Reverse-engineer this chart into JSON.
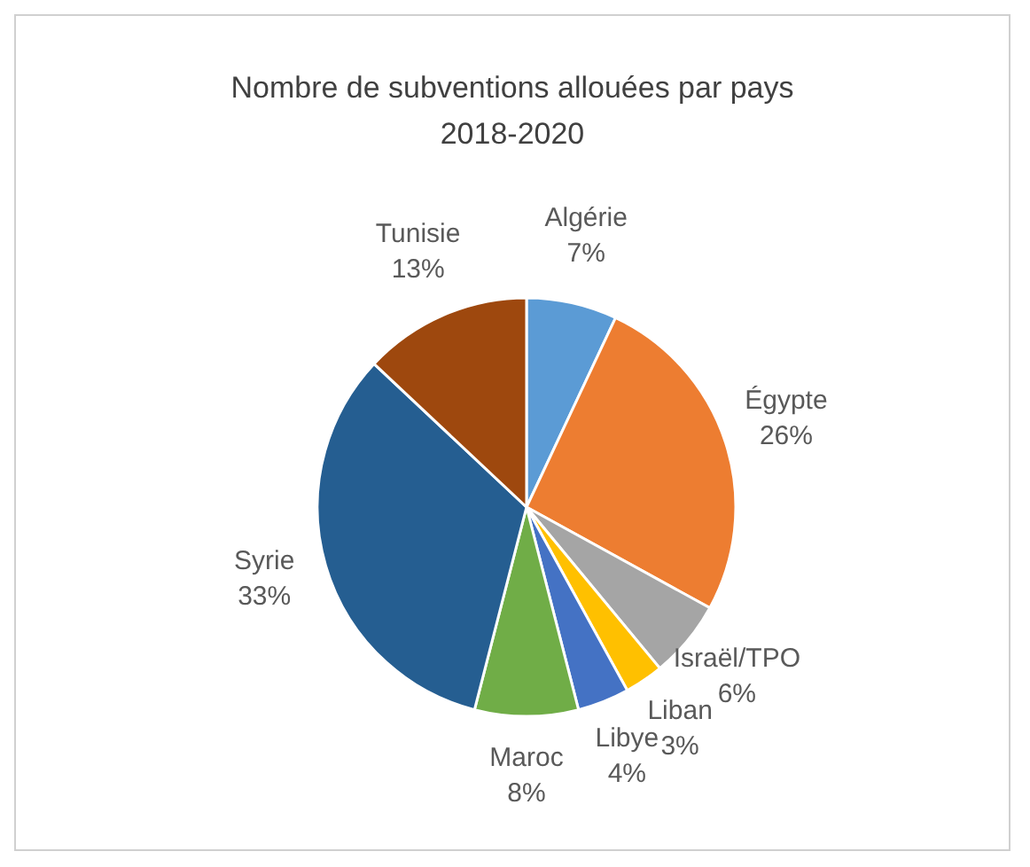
{
  "chart_data": {
    "type": "pie",
    "title": "Nombre de subventions allouées par pays 2018-2020",
    "categories": [
      "Algérie",
      "Égypte",
      "Israël/TPO",
      "Liban",
      "Libye",
      "Maroc",
      "Syrie",
      "Tunisie"
    ],
    "values": [
      7,
      26,
      6,
      3,
      4,
      8,
      33,
      13
    ],
    "value_labels": [
      "7%",
      "26%",
      "6%",
      "3%",
      "4%",
      "8%",
      "33%",
      "13%"
    ],
    "colors": [
      "#5b9bd5",
      "#ed7d31",
      "#a5a5a5",
      "#ffc000",
      "#4472c4",
      "#70ad47",
      "#255e91",
      "#9e480e"
    ],
    "legend": false
  }
}
